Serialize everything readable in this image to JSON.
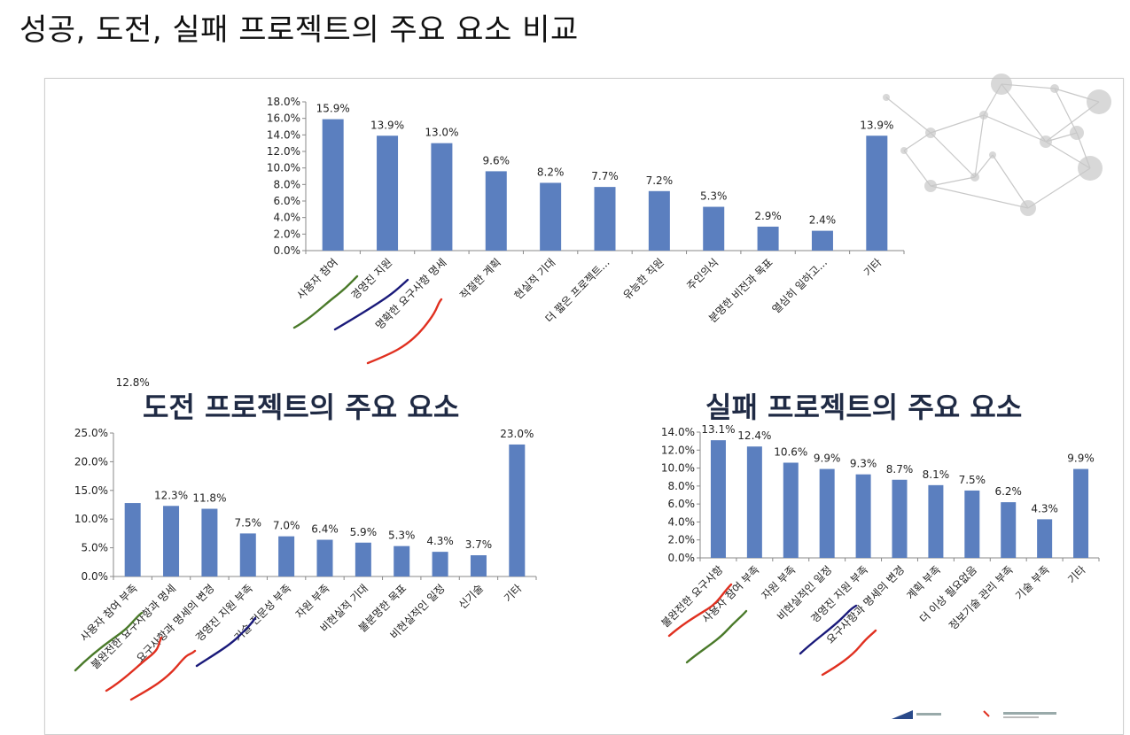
{
  "page": {
    "title": "성공, 도전, 실패 프로젝트의 주요 요소 비교"
  },
  "colors": {
    "bar": "#5b7fbf",
    "axis": "#888888",
    "underline_green": "#4a7a2a",
    "underline_navy": "#1a1a7a",
    "underline_red": "#e03020",
    "network": "#c8c8c8"
  },
  "chart_data": [
    {
      "id": "success",
      "type": "bar",
      "title": "",
      "categories": [
        "사용자 참여",
        "경영진 지원",
        "명확한 요구사항 명세",
        "적절한 계획",
        "현실적 기대",
        "더 짧은 프로젝트...",
        "유능한 직원",
        "주인의식",
        "분명한 비전과 목표",
        "열심히 일하고...",
        "기타"
      ],
      "values": [
        15.9,
        13.9,
        13.0,
        9.6,
        8.2,
        7.7,
        7.2,
        5.3,
        2.9,
        2.4,
        13.9
      ],
      "value_labels": [
        "15.9%",
        "13.9%",
        "13.0%",
        "9.6%",
        "8.2%",
        "7.7%",
        "7.2%",
        "5.3%",
        "2.9%",
        "2.4%",
        "13.9%"
      ],
      "yticks": [
        "0.0%",
        "2.0%",
        "4.0%",
        "6.0%",
        "8.0%",
        "10.0%",
        "12.0%",
        "14.0%",
        "16.0%",
        "18.0%"
      ],
      "ylim": [
        0,
        18
      ],
      "grid": false
    },
    {
      "id": "challenged",
      "type": "bar",
      "title": "도전 프로젝트의 주요 요소",
      "categories": [
        "사용자 참여 부족",
        "불완전한 요구사항과 명세",
        "요구사항과 명세의 변경",
        "경영진 지원 부족",
        "기술 전문성 부족",
        "자원 부족",
        "비현실적 기대",
        "불분명한 목표",
        "비현실적인 일정",
        "신기술",
        "기타"
      ],
      "values": [
        12.8,
        12.3,
        11.8,
        7.5,
        7.0,
        6.4,
        5.9,
        5.3,
        4.3,
        3.7,
        23.0
      ],
      "value_labels": [
        "12.8%",
        "12.3%",
        "11.8%",
        "7.5%",
        "7.0%",
        "6.4%",
        "5.9%",
        "5.3%",
        "4.3%",
        "3.7%",
        "23.0%"
      ],
      "yticks": [
        "0.0%",
        "5.0%",
        "10.0%",
        "15.0%",
        "20.0%",
        "25.0%"
      ],
      "ylim": [
        0,
        25
      ],
      "grid": false
    },
    {
      "id": "failed",
      "type": "bar",
      "title": "실패 프로젝트의 주요 요소",
      "categories": [
        "불완전한 요구사항",
        "사용자 참여 부족",
        "자원 부족",
        "비현실적인 일정",
        "경영진 지원 부족",
        "요구사항과 명세의 변경",
        "계획 부족",
        "더 이상 필요없음",
        "정보기술 관리 부족",
        "기술 부족",
        "기타"
      ],
      "values": [
        13.1,
        12.4,
        10.6,
        9.9,
        9.3,
        8.7,
        8.1,
        7.5,
        6.2,
        4.3,
        9.9
      ],
      "value_labels": [
        "13.1%",
        "12.4%",
        "10.6%",
        "9.9%",
        "9.3%",
        "8.7%",
        "8.1%",
        "7.5%",
        "6.2%",
        "4.3%",
        "9.9%"
      ],
      "yticks": [
        "0.0%",
        "2.0%",
        "4.0%",
        "6.0%",
        "8.0%",
        "10.0%",
        "12.0%",
        "14.0%"
      ],
      "ylim": [
        0,
        14
      ],
      "grid": false
    }
  ]
}
